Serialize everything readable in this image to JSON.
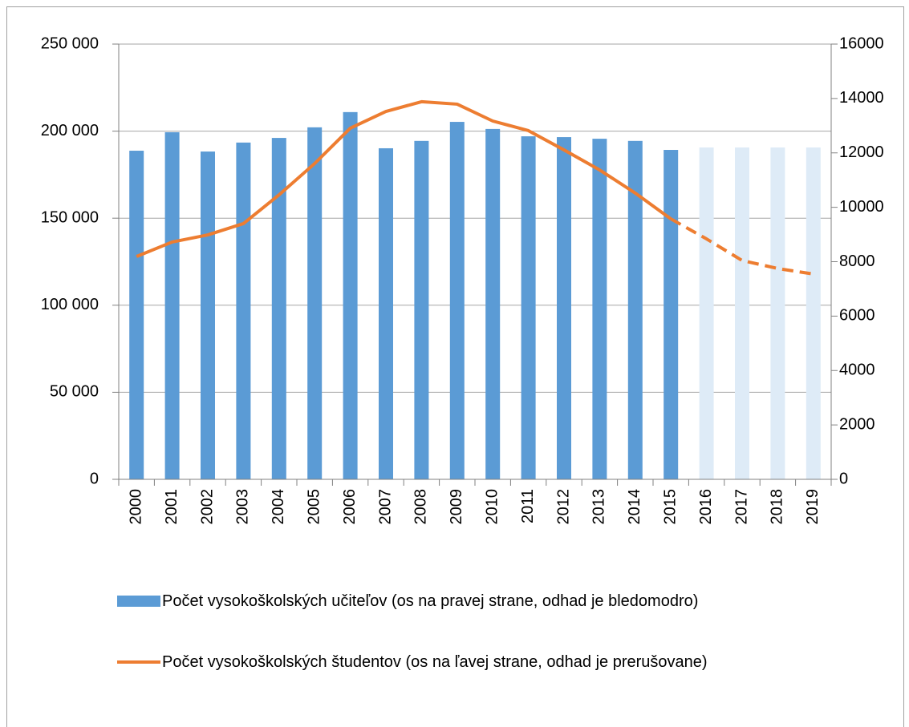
{
  "chart_data": {
    "type": "bar_line",
    "categories": [
      "2000",
      "2001",
      "2002",
      "2003",
      "2004",
      "2005",
      "2006",
      "2007",
      "2008",
      "2009",
      "2010",
      "2011",
      "2012",
      "2013",
      "2014",
      "2015",
      "2016",
      "2017",
      "2018",
      "2019"
    ],
    "forecast_from": "2016",
    "series": [
      {
        "name": "Počet vysokoškolských učiteľov (os na pravej strane, odhad je bledomodro)",
        "type": "bar",
        "axis": "y2",
        "color": "#5b9bd5",
        "forecast_color": "#deebf7",
        "values": [
          12080,
          12760,
          12050,
          12380,
          12550,
          12940,
          13500,
          12170,
          12440,
          13140,
          12880,
          12610,
          12580,
          12520,
          12440,
          12110,
          12200,
          12200,
          12200,
          12200
        ]
      },
      {
        "name": "Počet vysokoškolských študentov (os na ľavej strane, odhad je prerušovane)",
        "type": "line",
        "axis": "y",
        "color": "#ed7d31",
        "values": [
          128000,
          136300,
          140400,
          146900,
          163400,
          181400,
          201700,
          211300,
          216900,
          215500,
          205800,
          200300,
          189200,
          177700,
          164400,
          149600,
          138100,
          125700,
          121100,
          117900
        ]
      }
    ],
    "ylim": [
      0,
      250000
    ],
    "yticks": [
      {
        "value": 0,
        "label": "0"
      },
      {
        "value": 50000,
        "label": "50 000"
      },
      {
        "value": 100000,
        "label": "100 000"
      },
      {
        "value": 150000,
        "label": "150 000"
      },
      {
        "value": 200000,
        "label": "200 000"
      },
      {
        "value": 250000,
        "label": "250 000"
      }
    ],
    "y2lim": [
      0,
      16000
    ],
    "y2ticks": [
      0,
      2000,
      4000,
      6000,
      8000,
      10000,
      12000,
      14000,
      16000
    ],
    "grid": true
  }
}
